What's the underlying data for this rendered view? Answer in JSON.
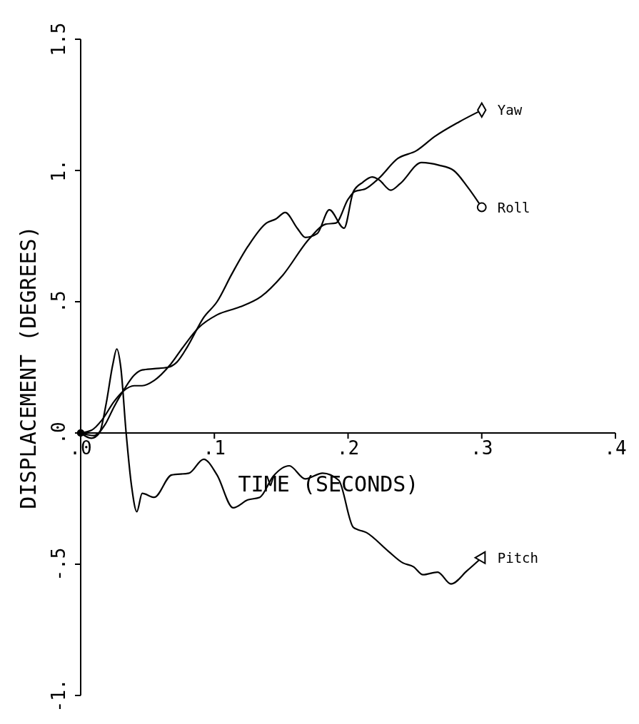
{
  "chart_data": {
    "type": "line",
    "xlabel": "TIME (SECONDS)",
    "ylabel": "DISPLACEMENT (DEGREES)",
    "xlim": [
      0,
      0.4
    ],
    "ylim": [
      -1,
      1.5
    ],
    "xticks": [
      {
        "value": 0,
        "label": ".0"
      },
      {
        "value": 0.1,
        "label": ".1"
      },
      {
        "value": 0.2,
        "label": ".2"
      },
      {
        "value": 0.3,
        "label": ".3"
      },
      {
        "value": 0.4,
        "label": ".4"
      }
    ],
    "yticks": [
      {
        "value": -1,
        "label": "-1."
      },
      {
        "value": -0.5,
        "label": "-.5"
      },
      {
        "value": 0,
        "label": ".0"
      },
      {
        "value": 0.5,
        "label": ".5"
      },
      {
        "value": 1,
        "label": "1."
      },
      {
        "value": 1.5,
        "label": "1.5"
      }
    ],
    "grid": false,
    "line_style": "solid",
    "series": [
      {
        "name": "Yaw",
        "color": "#000000",
        "x": [
          0,
          0.008,
          0.016,
          0.025,
          0.032,
          0.04,
          0.046,
          0.055,
          0.067,
          0.077,
          0.088,
          0.102,
          0.119,
          0.135,
          0.151,
          0.171,
          0.183,
          0.191,
          0.2,
          0.205,
          0.213,
          0.223,
          0.237,
          0.251,
          0.265,
          0.283,
          0.3
        ],
        "values": [
          0,
          0.01,
          0.05,
          0.12,
          0.16,
          0.18,
          0.18,
          0.2,
          0.26,
          0.33,
          0.4,
          0.45,
          0.48,
          0.52,
          0.6,
          0.74,
          0.795,
          0.8,
          0.89,
          0.92,
          0.93,
          0.97,
          1.045,
          1.075,
          1.13,
          1.185,
          1.23
        ]
      },
      {
        "name": "Roll",
        "color": "#000000",
        "x": [
          0,
          0.01,
          0.018,
          0.025,
          0.033,
          0.04,
          0.046,
          0.055,
          0.065,
          0.072,
          0.08,
          0.092,
          0.102,
          0.113,
          0.125,
          0.139,
          0.146,
          0.153,
          0.162,
          0.168,
          0.177,
          0.186,
          0.197,
          0.204,
          0.211,
          0.218,
          0.223,
          0.232,
          0.239,
          0.255,
          0.268,
          0.279,
          0.289,
          0.3
        ],
        "values": [
          0,
          -0.01,
          0.03,
          0.1,
          0.17,
          0.22,
          0.24,
          0.245,
          0.25,
          0.27,
          0.33,
          0.44,
          0.5,
          0.605,
          0.71,
          0.8,
          0.815,
          0.84,
          0.78,
          0.745,
          0.76,
          0.85,
          0.78,
          0.92,
          0.955,
          0.975,
          0.965,
          0.925,
          0.95,
          1.03,
          1.02,
          1.0,
          0.94,
          0.86
        ]
      },
      {
        "name": "Pitch",
        "color": "#000000",
        "x": [
          0,
          0.008,
          0.014,
          0.019,
          0.024,
          0.027,
          0.03,
          0.034,
          0.038,
          0.042,
          0.046,
          0.055,
          0.068,
          0.081,
          0.092,
          0.102,
          0.114,
          0.125,
          0.134,
          0.144,
          0.156,
          0.168,
          0.181,
          0.193,
          0.204,
          0.214,
          0.23,
          0.241,
          0.249,
          0.256,
          0.267,
          0.277,
          0.289,
          0.3
        ],
        "values": [
          0,
          -0.02,
          0.0,
          0.11,
          0.26,
          0.32,
          0.25,
          0.0,
          -0.2,
          -0.3,
          -0.23,
          -0.245,
          -0.16,
          -0.153,
          -0.1,
          -0.16,
          -0.285,
          -0.255,
          -0.245,
          -0.165,
          -0.125,
          -0.175,
          -0.153,
          -0.18,
          -0.36,
          -0.38,
          -0.45,
          -0.495,
          -0.51,
          -0.54,
          -0.53,
          -0.575,
          -0.525,
          -0.475
        ]
      }
    ]
  }
}
